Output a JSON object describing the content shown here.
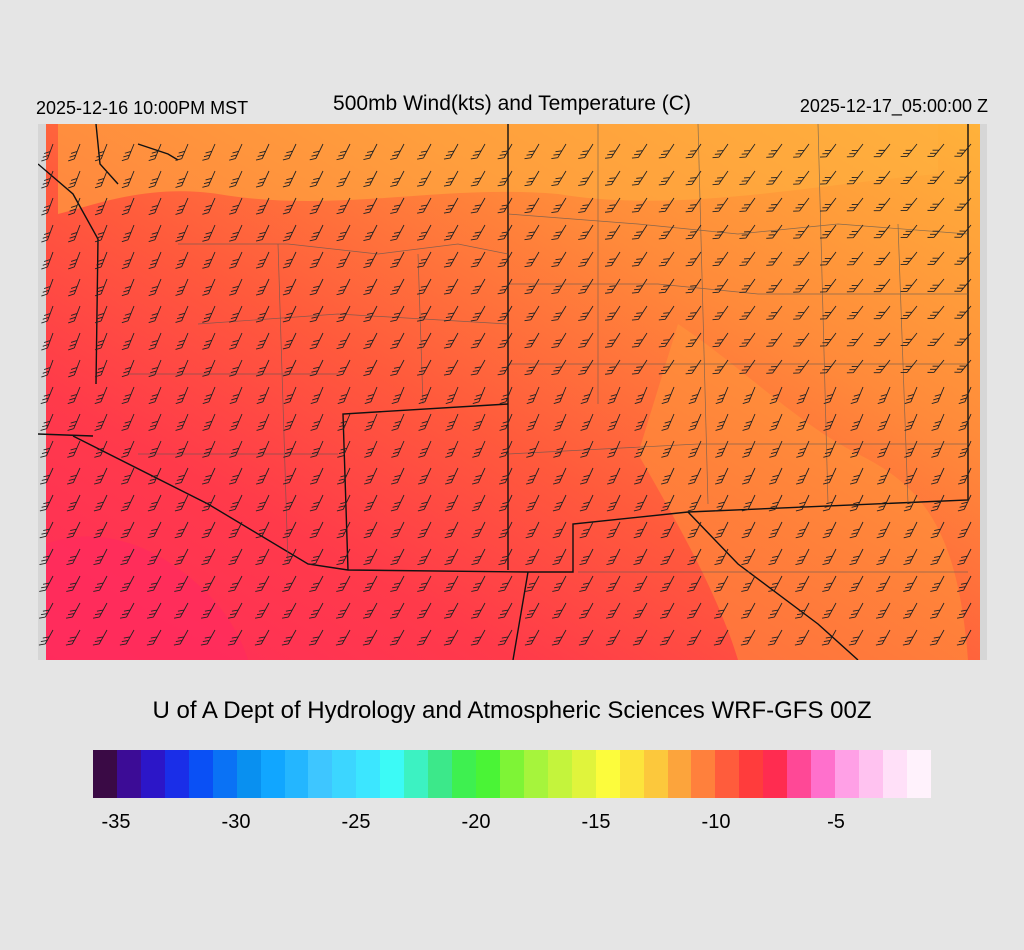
{
  "header": {
    "local_time": "2025-12-16 10:00PM MST",
    "title": "500mb Wind(kts) and Temperature (C)",
    "utc_time": "2025-12-17_05:00:00 Z"
  },
  "map": {
    "field": "500mb temperature (C) shaded with wind barbs (kts)",
    "temperature_range_c": [
      -12,
      -4
    ],
    "dominant_colors": {
      "warm_southwest": "#ff3660",
      "mid_band": "#ff5a3c",
      "northeast_orange": "#ff8e3a",
      "far_northeast": "#ffb23a",
      "no_data": "#d6d6d6",
      "barb_color": "#222222",
      "state_border": "#111111",
      "county_border": "#555555"
    }
  },
  "credit": "U of A Dept of Hydrology and Atmospheric Sciences WRF-GFS 00Z",
  "colorbar": {
    "colors": [
      "#3a0a45",
      "#3c0c96",
      "#2c16c8",
      "#1a2ee8",
      "#0a50f5",
      "#0a72f5",
      "#0990f0",
      "#11a6ff",
      "#24b6ff",
      "#3ec6ff",
      "#3cd6ff",
      "#3ce6ff",
      "#3cfaf6",
      "#3cf2c2",
      "#3ce88a",
      "#3ef050",
      "#4af436",
      "#7ef436",
      "#a6f43c",
      "#c4f43c",
      "#e0f43c",
      "#fcfc3c",
      "#fce43c",
      "#fcc83c",
      "#fca43c",
      "#ff803c",
      "#ff5c3c",
      "#ff3c3c",
      "#ff2c50",
      "#ff4896",
      "#ff70cc",
      "#ffa0e6",
      "#ffc2f0",
      "#ffe0f8",
      "#fff2fc"
    ],
    "tick_labels": [
      "-35",
      "-30",
      "-25",
      "-20",
      "-15",
      "-10",
      "-5"
    ]
  }
}
